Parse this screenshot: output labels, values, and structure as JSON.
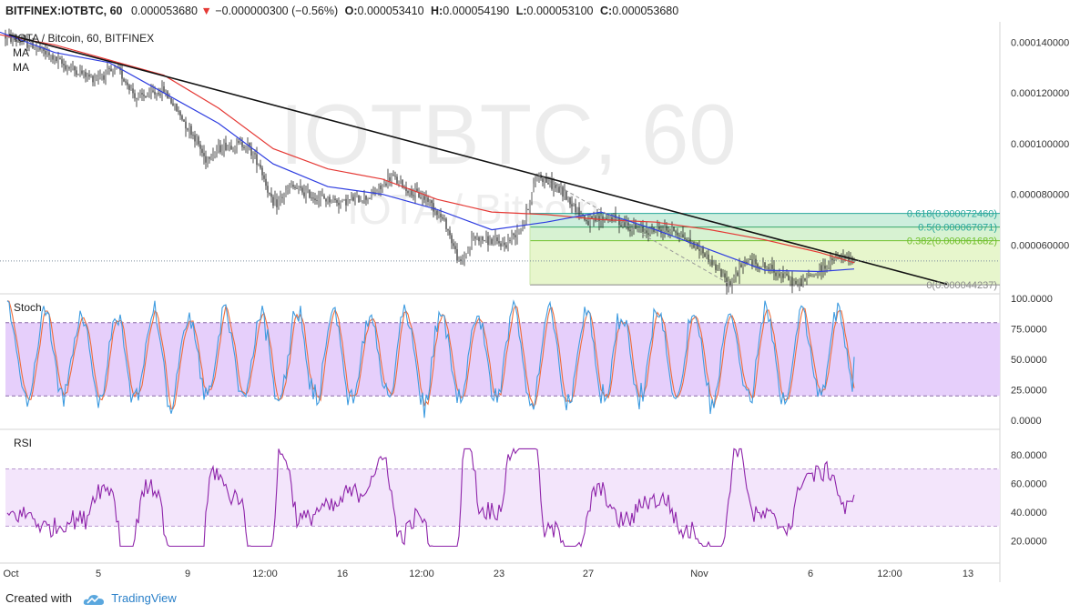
{
  "header": {
    "symbol": "BITFINEX:IOTBTC, 60",
    "price": "0.000053680",
    "change": "−0.000000300 (−0.56%)",
    "o_label": "O:",
    "o_value": "0.000053410",
    "h_label": "H:",
    "h_value": "0.000054190",
    "l_label": "L:",
    "l_value": "0.000053100",
    "c_label": "C:",
    "c_value": "0.000053680"
  },
  "legend": {
    "pair": "IOTA / Bitcoin, 60, BITFINEX",
    "ma1": "MA",
    "ma2": "MA"
  },
  "watermark": {
    "main": "IOTBTC, 60",
    "sub": "IOTA / Bitcoin"
  },
  "footer": {
    "created": "Created with",
    "brand": "TradingView"
  },
  "colors": {
    "candle_up": "#1f1f1f",
    "candle_down": "#1f1f1f",
    "ma_fast": "#2f3ee0",
    "ma_slow": "#e53935",
    "trendline": "#111111",
    "stoch_k": "#3d9be0",
    "stoch_d": "#ef6c3a",
    "stoch_band": "#e6cffb",
    "rsi_line": "#8e24aa",
    "rsi_band": "#f3e5fb",
    "fib_0_382": "#e7f6cc",
    "fib_382_5": "#d7f2d2",
    "fib_5_618": "#cdeedd",
    "fib_text_green": "#6fbf2a",
    "fib_text_teal": "#26a69a",
    "fib_text_grey": "#888888"
  },
  "chart_data": [
    {
      "type": "candlestick",
      "title": "IOTBTC, 60",
      "y_axis_ticks": [
        "0.000140000",
        "0.000120000",
        "0.000100000",
        "0.000080000",
        "0.000060000"
      ],
      "ylim": [
        4.25e-05,
        0.0001445
      ],
      "x_axis_ticks": [
        "Oct",
        "5",
        "9",
        "12:00",
        "16",
        "12:00",
        "23",
        "27",
        "Nov",
        "6",
        "12:00",
        "13"
      ],
      "last_price": 5.368e-05,
      "price_path": [
        [
          0,
          0.000143
        ],
        [
          40,
          0.000138
        ],
        [
          70,
          0.000131
        ],
        [
          100,
          0.000126
        ],
        [
          130,
          0.000129
        ],
        [
          150,
          0.000118
        ],
        [
          180,
          0.000121
        ],
        [
          200,
          0.00011
        ],
        [
          215,
          0.000102
        ],
        [
          225,
          9.4e-05
        ],
        [
          245,
          9.9e-05
        ],
        [
          270,
          0.0001
        ],
        [
          285,
          9.2e-05
        ],
        [
          300,
          7.5e-05
        ],
        [
          320,
          8.3e-05
        ],
        [
          345,
          7.9e-05
        ],
        [
          375,
          7.7e-05
        ],
        [
          405,
          7.9e-05
        ],
        [
          420,
          8.3e-05
        ],
        [
          430,
          8.7e-05
        ],
        [
          450,
          8.1e-05
        ],
        [
          470,
          7.8e-05
        ],
        [
          490,
          6.8e-05
        ],
        [
          505,
          5.2e-05
        ],
        [
          520,
          6.3e-05
        ],
        [
          555,
          6e-05
        ],
        [
          575,
          6.9e-05
        ],
        [
          590,
          8.8e-05
        ],
        [
          620,
          8e-05
        ],
        [
          645,
          6.9e-05
        ],
        [
          670,
          7.1e-05
        ],
        [
          700,
          6.6e-05
        ],
        [
          740,
          6.6e-05
        ],
        [
          770,
          5.8e-05
        ],
        [
          800,
          4.48e-05
        ],
        [
          820,
          5.4e-05
        ],
        [
          850,
          5e-05
        ],
        [
          875,
          4.45e-05
        ],
        [
          900,
          5e-05
        ],
        [
          920,
          5.5e-05
        ],
        [
          938,
          5.368e-05
        ]
      ],
      "ma_fast": [
        [
          0,
          0.000144
        ],
        [
          60,
          0.000136
        ],
        [
          120,
          0.000132
        ],
        [
          180,
          0.00012
        ],
        [
          240,
          0.000108
        ],
        [
          300,
          9.2e-05
        ],
        [
          360,
          8.3e-05
        ],
        [
          420,
          8e-05
        ],
        [
          480,
          7.4e-05
        ],
        [
          540,
          6.6e-05
        ],
        [
          600,
          6.9e-05
        ],
        [
          660,
          7.3e-05
        ],
        [
          720,
          6.6e-05
        ],
        [
          780,
          5.8e-05
        ],
        [
          840,
          5e-05
        ],
        [
          900,
          4.95e-05
        ],
        [
          938,
          5.05e-05
        ]
      ],
      "ma_slow": [
        [
          0,
          0.000143
        ],
        [
          60,
          0.000139
        ],
        [
          120,
          0.000133
        ],
        [
          180,
          0.000127
        ],
        [
          240,
          0.000114
        ],
        [
          300,
          9.8e-05
        ],
        [
          360,
          9e-05
        ],
        [
          420,
          8.6e-05
        ],
        [
          480,
          7.8e-05
        ],
        [
          540,
          7.3e-05
        ],
        [
          600,
          7.2e-05
        ],
        [
          660,
          7e-05
        ],
        [
          720,
          6.9e-05
        ],
        [
          780,
          6.6e-05
        ],
        [
          840,
          6.2e-05
        ],
        [
          900,
          5.7e-05
        ],
        [
          938,
          5.3e-05
        ]
      ],
      "trendline": [
        [
          10,
          0.000143
        ],
        [
          1040,
          4.45e-05
        ]
      ],
      "fib": {
        "x_start": 582,
        "levels": [
          {
            "ratio": "0.618",
            "price": 7.246e-05,
            "label": "0.618(0.000072460)"
          },
          {
            "ratio": "0.5",
            "price": 6.7071e-05,
            "label": "0.5(0.000067071)"
          },
          {
            "ratio": "0.382",
            "price": 6.1682e-05,
            "label": "0.382(0.000061682)"
          },
          {
            "ratio": "0",
            "price": 4.4237e-05,
            "label": "0(0.000044237)"
          }
        ]
      }
    },
    {
      "type": "line",
      "title": "Stoch",
      "y_axis_ticks": [
        "100.0000",
        "75.0000",
        "50.0000",
        "25.0000",
        "0.0000"
      ],
      "ylim": [
        0,
        100
      ],
      "bands": [
        20,
        80
      ],
      "last_value": 52
    },
    {
      "type": "line",
      "title": "RSI",
      "y_axis_ticks": [
        "80.0000",
        "60.0000",
        "40.0000",
        "20.0000"
      ],
      "ylim": [
        10,
        90
      ],
      "bands": [
        30,
        70
      ],
      "last_value": 52
    }
  ]
}
